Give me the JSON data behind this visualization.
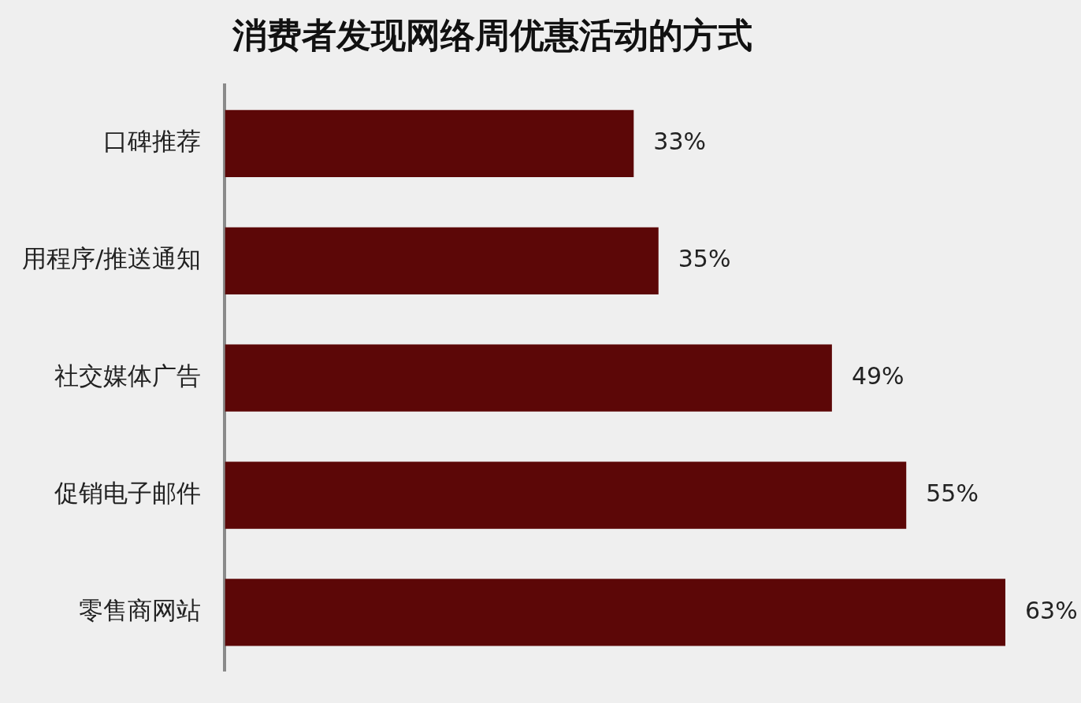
{
  "chart_data": {
    "type": "bar",
    "orientation": "horizontal",
    "title": "消费者发现网络周优惠活动的方式",
    "categories": [
      "口碑推荐",
      "用程序/推送通知",
      "社交媒体广告",
      "促销电子邮件",
      "零售商网站"
    ],
    "values": [
      33,
      35,
      49,
      55,
      63
    ],
    "value_labels": [
      "33%",
      "35%",
      "49%",
      "55%",
      "63%"
    ],
    "color": "#5c0707",
    "tick_labels": "y"
  }
}
